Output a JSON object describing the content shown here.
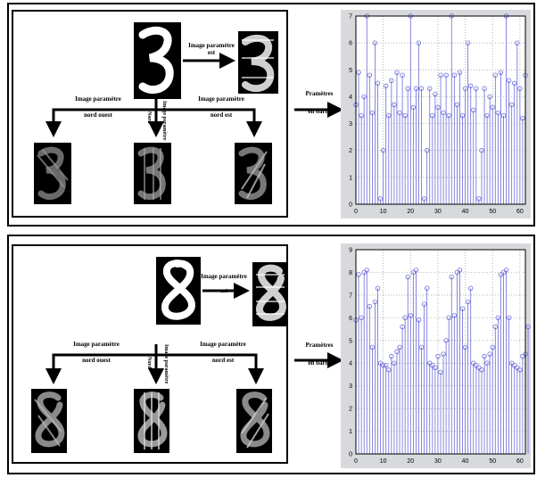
{
  "panels": [
    {
      "arrow_labels": {
        "est": [
          "Image paramètre",
          "est"
        ],
        "nord_ouest": [
          "Image paramètre",
          "nord ouest"
        ],
        "nord": [
          "Nord"
        ],
        "nord_vertical": "Image paramètre",
        "nord_est": [
          "Image paramètre",
          "nord est"
        ],
        "to_chart": [
          "Pramètres",
          "en barre"
        ]
      }
    },
    {
      "arrow_labels": {
        "est": [
          "Image paramètre",
          "est"
        ],
        "nord_ouest": [
          "Image paramètre",
          "nord ouest"
        ],
        "nord": [
          "Nord"
        ],
        "nord_vertical": "Image paramètre",
        "nord_est": [
          "Image paramètre",
          "nord est"
        ],
        "to_chart": [
          "Pramètres",
          "en barre"
        ]
      }
    }
  ],
  "colors": {
    "stem": "#6b6bd9",
    "grid": "#9a9a9a"
  },
  "chart_data": [
    {
      "type": "scatter",
      "style": "stem",
      "xlim": [
        0,
        62
      ],
      "ylim": [
        0,
        7
      ],
      "xticks": [
        "0",
        "10",
        "20",
        "30",
        "40",
        "50",
        "60"
      ],
      "yticks": [
        "0",
        "1",
        "2",
        "3",
        "4",
        "5",
        "6",
        "7"
      ],
      "grid": true,
      "y": [
        3.7,
        4.9,
        3.3,
        4.0,
        7.0,
        4.8,
        3.4,
        6.0,
        4.5,
        0.2,
        2.0,
        4.4,
        3.3,
        4.6,
        3.7,
        4.9,
        3.4,
        4.8,
        3.3,
        4.3,
        7.0,
        3.6,
        4.3,
        6.0,
        4.3,
        0.2,
        2.0,
        4.3,
        3.3,
        4.1,
        3.6,
        4.8,
        3.4,
        4.8,
        3.3,
        7.0,
        4.8,
        3.7,
        4.9,
        3.3,
        4.3,
        6.0,
        4.4,
        3.5,
        4.3,
        0.2,
        2.0,
        4.3,
        3.3,
        4.0,
        3.6,
        4.8,
        3.4,
        4.9,
        3.3,
        7.0,
        4.6,
        3.7,
        4.5,
        6.0,
        4.3,
        3.2,
        4.8
      ]
    },
    {
      "type": "scatter",
      "style": "stem",
      "xlim": [
        0,
        62
      ],
      "ylim": [
        0,
        9
      ],
      "xticks": [
        "0",
        "10",
        "20",
        "30",
        "40",
        "50",
        "60"
      ],
      "yticks": [
        "0",
        "1",
        "2",
        "3",
        "4",
        "5",
        "6",
        "7",
        "8",
        "9"
      ],
      "grid": true,
      "y": [
        5.9,
        7.9,
        6.0,
        8.0,
        8.1,
        6.5,
        4.7,
        6.7,
        7.3,
        4.0,
        3.9,
        3.9,
        3.7,
        4.3,
        4.0,
        4.5,
        4.7,
        5.6,
        6.0,
        7.8,
        6.1,
        8.0,
        8.1,
        5.9,
        4.7,
        6.6,
        7.3,
        4.0,
        3.9,
        3.8,
        4.3,
        3.6,
        4.4,
        5.0,
        6.0,
        7.8,
        6.1,
        8.0,
        8.1,
        6.4,
        4.7,
        6.7,
        7.3,
        4.0,
        3.9,
        3.8,
        3.7,
        4.3,
        4.0,
        4.4,
        4.7,
        5.6,
        6.0,
        7.9,
        8.0,
        8.1,
        6.0,
        4.0,
        3.9,
        3.8,
        3.7,
        4.3,
        4.4,
        5.6
      ]
    }
  ]
}
